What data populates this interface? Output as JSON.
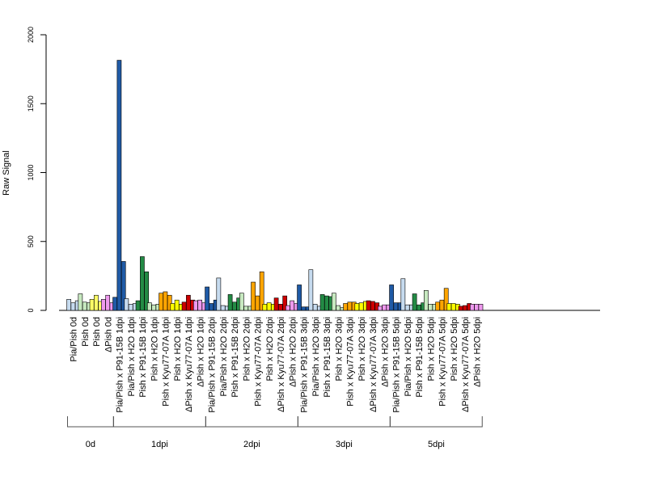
{
  "chart_data": {
    "type": "bar",
    "ylabel": "Raw Signal",
    "ylim": [
      0,
      2000
    ],
    "yticks": [
      0,
      500,
      1000,
      1500,
      2000
    ],
    "grid": false,
    "legend": "none",
    "bars_per_category": 3,
    "categories": [
      {
        "label": "Pia/Pish 0d",
        "color": "#c6dbef",
        "values": [
          80,
          55,
          70
        ]
      },
      {
        "label": "Pish 0d",
        "color": "#c7e9c0",
        "values": [
          120,
          60,
          55
        ]
      },
      {
        "label": "Pish 0d",
        "color": "#ffff66",
        "values": [
          80,
          110,
          65
        ]
      },
      {
        "label": "ΔPish 0d",
        "color": "#ee99ee",
        "values": [
          80,
          110,
          55
        ]
      },
      {
        "label": "Pia/Pish x P91-15B 1dpi",
        "color": "#1f5aa6",
        "values": [
          95,
          1815,
          355
        ]
      },
      {
        "label": "Pia/Pish x H2O 1dpi",
        "color": "#c6dbef",
        "values": [
          85,
          45,
          50
        ]
      },
      {
        "label": "Pish x P91-15B 1dpi",
        "color": "#238b45",
        "values": [
          70,
          390,
          280
        ]
      },
      {
        "label": "Pish x H2O 1dpi",
        "color": "#c7e9c0",
        "values": [
          55,
          40,
          45
        ]
      },
      {
        "label": "Pish x Kyu77-07A 1dpi",
        "color": "#ffa500",
        "values": [
          125,
          135,
          110
        ]
      },
      {
        "label": "Pish x H2O 1dpi",
        "color": "#ffff00",
        "values": [
          50,
          75,
          45
        ]
      },
      {
        "label": "ΔPish x Kyu77-07A 1dpi",
        "color": "#cc0000",
        "values": [
          60,
          110,
          75
        ]
      },
      {
        "label": "ΔPish x H2O 1dpi",
        "color": "#ee99ee",
        "values": [
          70,
          75,
          55
        ]
      },
      {
        "label": "Pia/Pish x P91-15B 2dpi",
        "color": "#1f5aa6",
        "values": [
          170,
          50,
          75
        ]
      },
      {
        "label": "Pia/Pish x H2O 2dpi",
        "color": "#c6dbef",
        "values": [
          235,
          35,
          30
        ]
      },
      {
        "label": "Pish x P91-15B 2dpi",
        "color": "#238b45",
        "values": [
          115,
          60,
          90
        ]
      },
      {
        "label": "Pish x H2O 2dpi",
        "color": "#c7e9c0",
        "values": [
          125,
          30,
          30
        ]
      },
      {
        "label": "Pish x Kyu77-07A 2dpi",
        "color": "#ffa500",
        "values": [
          205,
          105,
          280
        ]
      },
      {
        "label": "Pish x H2O 2dpi",
        "color": "#ffff00",
        "values": [
          45,
          55,
          45
        ]
      },
      {
        "label": "ΔPish x Kyu77-07A 2dpi",
        "color": "#cc0000",
        "values": [
          90,
          45,
          105
        ]
      },
      {
        "label": "ΔPish x H2O 2dpi",
        "color": "#ee99ee",
        "values": [
          35,
          70,
          50
        ]
      },
      {
        "label": "Pia/Pish x P91-15B 3dpi",
        "color": "#1f5aa6",
        "values": [
          185,
          25,
          25
        ]
      },
      {
        "label": "Pia/Pish x H2O 3dpi",
        "color": "#c6dbef",
        "values": [
          295,
          45,
          30
        ]
      },
      {
        "label": "Pish x P91-15B 3dpi",
        "color": "#238b45",
        "values": [
          115,
          105,
          100
        ]
      },
      {
        "label": "Pish x H2O 3dpi",
        "color": "#c7e9c0",
        "values": [
          125,
          35,
          20
        ]
      },
      {
        "label": "Pish x Kyu77-07A 3dpi",
        "color": "#ffa500",
        "values": [
          50,
          60,
          60
        ]
      },
      {
        "label": "Pish x H2O 3dpi",
        "color": "#ffff00",
        "values": [
          50,
          55,
          65
        ]
      },
      {
        "label": "ΔPish x Kyu77-07A 3dpi",
        "color": "#cc0000",
        "values": [
          70,
          65,
          55
        ]
      },
      {
        "label": "ΔPish x H2O 3dpi",
        "color": "#ee99ee",
        "values": [
          30,
          40,
          40
        ]
      },
      {
        "label": "Pia/Pish x P91-15B 5dpi",
        "color": "#1f5aa6",
        "values": [
          185,
          55,
          55
        ]
      },
      {
        "label": "Pia/Pish x H2O 5dpi",
        "color": "#c6dbef",
        "values": [
          230,
          40,
          40
        ]
      },
      {
        "label": "Pish x P91-15B 5dpi",
        "color": "#238b45",
        "values": [
          120,
          40,
          55
        ]
      },
      {
        "label": "Pish x H2O 5dpi",
        "color": "#c7e9c0",
        "values": [
          145,
          45,
          45
        ]
      },
      {
        "label": "Pish x Kyu77-07A 5dpi",
        "color": "#ffa500",
        "values": [
          60,
          75,
          160
        ]
      },
      {
        "label": "Pish x H2O 5dpi",
        "color": "#ffff00",
        "values": [
          50,
          50,
          45
        ]
      },
      {
        "label": "ΔPish x Kyu77-07A 5dpi",
        "color": "#cc0000",
        "values": [
          30,
          35,
          50
        ]
      },
      {
        "label": "ΔPish x H2O 5dpi",
        "color": "#ee99ee",
        "values": [
          45,
          45,
          45
        ]
      }
    ],
    "groups": [
      {
        "label": "0d",
        "start": 0,
        "end": 3
      },
      {
        "label": "1dpi",
        "start": 4,
        "end": 11
      },
      {
        "label": "2dpi",
        "start": 12,
        "end": 19
      },
      {
        "label": "3dpi",
        "start": 20,
        "end": 27
      },
      {
        "label": "5dpi",
        "start": 28,
        "end": 35
      }
    ]
  }
}
